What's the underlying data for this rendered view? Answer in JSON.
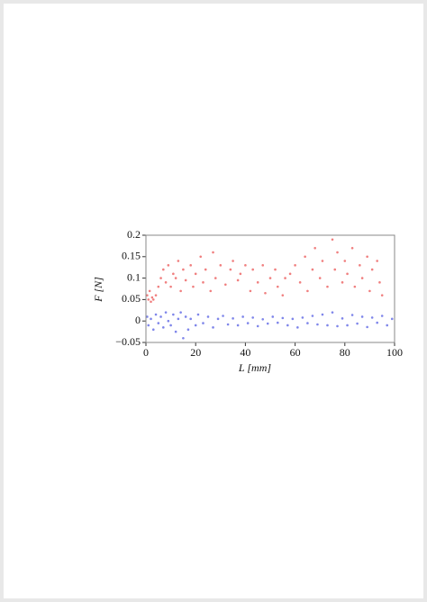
{
  "chart_data": {
    "type": "scatter",
    "xlabel": "L [mm]",
    "ylabel": "F [N]",
    "xlim": [
      0,
      100
    ],
    "ylim": [
      -0.05,
      0.2
    ],
    "xticks": [
      0,
      20,
      40,
      60,
      80,
      100
    ],
    "yticks": [
      {
        "value": -0.05,
        "label": "−0.05"
      },
      0,
      0.05,
      0.1,
      0.15,
      0.2
    ],
    "grid": false,
    "series": [
      {
        "color": "#f07f7f",
        "x": [
          0.5,
          1,
          1.5,
          2,
          2.5,
          3,
          4,
          5,
          6,
          7,
          8,
          9,
          10,
          11,
          12,
          13,
          14,
          15,
          16,
          18,
          19,
          20,
          22,
          23,
          24,
          26,
          27,
          28,
          30,
          32,
          34,
          35,
          37,
          38,
          40,
          42,
          43,
          45,
          47,
          48,
          50,
          52,
          53,
          55,
          56,
          58,
          60,
          62,
          64,
          65,
          67,
          68,
          70,
          71,
          73,
          75,
          76,
          77,
          79,
          80,
          81,
          83,
          84,
          86,
          87,
          89,
          90,
          91,
          93,
          94,
          95
        ],
        "values": [
          0.06,
          0.05,
          0.07,
          0.045,
          0.055,
          0.05,
          0.06,
          0.08,
          0.1,
          0.12,
          0.09,
          0.13,
          0.08,
          0.11,
          0.1,
          0.14,
          0.07,
          0.12,
          0.095,
          0.13,
          0.08,
          0.11,
          0.15,
          0.09,
          0.12,
          0.07,
          0.16,
          0.1,
          0.13,
          0.085,
          0.12,
          0.14,
          0.095,
          0.11,
          0.13,
          0.07,
          0.12,
          0.09,
          0.13,
          0.065,
          0.1,
          0.12,
          0.08,
          0.06,
          0.1,
          0.11,
          0.13,
          0.09,
          0.15,
          0.07,
          0.12,
          0.17,
          0.1,
          0.14,
          0.08,
          0.19,
          0.12,
          0.16,
          0.09,
          0.14,
          0.11,
          0.17,
          0.08,
          0.13,
          0.1,
          0.15,
          0.07,
          0.12,
          0.14,
          0.09,
          0.06
        ]
      },
      {
        "color": "#7f86ea",
        "x": [
          0.5,
          1,
          2,
          3,
          4,
          5,
          6,
          7,
          8,
          9,
          10,
          11,
          12,
          13,
          14,
          15,
          16,
          17,
          18,
          20,
          21,
          23,
          25,
          27,
          29,
          31,
          33,
          35,
          37,
          39,
          41,
          43,
          45,
          47,
          49,
          51,
          53,
          55,
          57,
          59,
          61,
          63,
          65,
          67,
          69,
          71,
          73,
          75,
          77,
          79,
          81,
          83,
          85,
          87,
          89,
          91,
          93,
          95,
          97,
          99
        ],
        "values": [
          0.01,
          -0.01,
          0.005,
          -0.02,
          0.015,
          -0.005,
          0.01,
          -0.015,
          0.02,
          0,
          -0.01,
          0.015,
          -0.025,
          0.005,
          0.02,
          -0.04,
          0.01,
          -0.02,
          0.005,
          -0.01,
          0.015,
          -0.005,
          0.01,
          -0.015,
          0.005,
          0.012,
          -0.008,
          0.006,
          -0.01,
          0.01,
          -0.005,
          0.008,
          -0.012,
          0.004,
          -0.006,
          0.01,
          -0.004,
          0.007,
          -0.01,
          0.005,
          -0.015,
          0.008,
          -0.005,
          0.012,
          -0.008,
          0.015,
          -0.01,
          0.02,
          -0.012,
          0.006,
          -0.01,
          0.014,
          -0.006,
          0.01,
          -0.014,
          0.008,
          -0.004,
          0.012,
          -0.01,
          0.005
        ]
      }
    ]
  }
}
